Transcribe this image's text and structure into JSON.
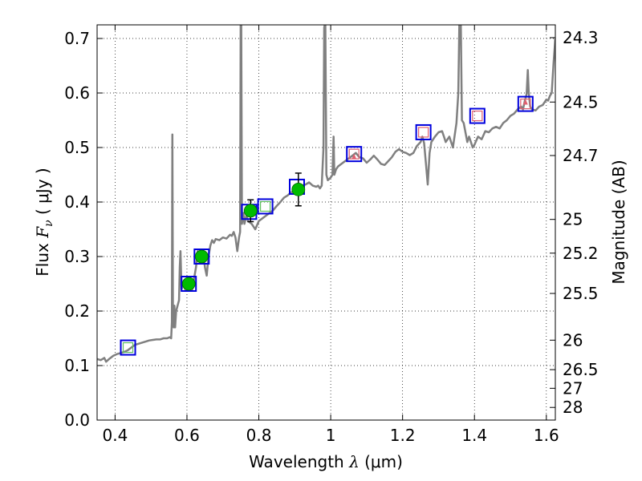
{
  "chart_data": {
    "type": "line",
    "title": "",
    "xlabel": {
      "prefix": "Wavelength  ",
      "symbol": "λ",
      "suffix": " (μm)"
    },
    "ylabel": {
      "prefix": "Flux  ",
      "symbol": "F",
      "subscript": "ν",
      "suffix": "  ( μJy )"
    },
    "y2label": "Magnitude (AB)",
    "xlim": [
      0.35,
      1.625
    ],
    "ylim": [
      0.0,
      0.725
    ],
    "x_ticks": [
      0.4,
      0.6,
      0.8,
      1.0,
      1.2,
      1.4,
      1.6
    ],
    "x_tick_labels": [
      "0.4",
      "0.6",
      "0.8",
      "1",
      "1.2",
      "1.4",
      "1.6"
    ],
    "y_ticks": [
      0.0,
      0.1,
      0.2,
      0.3,
      0.4,
      0.5,
      0.6,
      0.7
    ],
    "y_tick_labels": [
      "0.0",
      "0.1",
      "0.2",
      "0.3",
      "0.4",
      "0.5",
      "0.6",
      "0.7"
    ],
    "mag_ticks": [
      {
        "label": "24.3",
        "flux": 0.7015
      },
      {
        "label": "24.5",
        "flux": 0.5834
      },
      {
        "label": "24.7",
        "flux": 0.4853
      },
      {
        "label": "25",
        "flux": 0.3681
      },
      {
        "label": "25.2",
        "flux": 0.3062
      },
      {
        "label": "25.5",
        "flux": 0.2323
      },
      {
        "label": "26",
        "flux": 0.1466
      },
      {
        "label": "26.5",
        "flux": 0.0925
      },
      {
        "label": "27",
        "flux": 0.0583
      },
      {
        "label": "28",
        "flux": 0.0232
      }
    ],
    "grid": true,
    "colors": {
      "model": "#808080",
      "observed": "#00bb00",
      "model_box": "#0000dd",
      "upper_inner": "#e06070",
      "green_inner": "#60c060",
      "errorbar": "#000000"
    },
    "series": [
      {
        "kind": "model_spectrum",
        "points": [
          [
            0.35,
            0.112
          ],
          [
            0.36,
            0.11
          ],
          [
            0.37,
            0.114
          ],
          [
            0.375,
            0.107
          ],
          [
            0.385,
            0.113
          ],
          [
            0.395,
            0.118
          ],
          [
            0.405,
            0.121
          ],
          [
            0.415,
            0.123
          ],
          [
            0.425,
            0.125
          ],
          [
            0.435,
            0.128
          ],
          [
            0.445,
            0.133
          ],
          [
            0.455,
            0.138
          ],
          [
            0.465,
            0.14
          ],
          [
            0.475,
            0.142
          ],
          [
            0.485,
            0.144
          ],
          [
            0.495,
            0.146
          ],
          [
            0.505,
            0.147
          ],
          [
            0.515,
            0.148
          ],
          [
            0.525,
            0.148
          ],
          [
            0.535,
            0.15
          ],
          [
            0.545,
            0.15
          ],
          [
            0.552,
            0.152
          ],
          [
            0.556,
            0.15
          ],
          [
            0.558,
            0.18
          ],
          [
            0.5595,
            0.524
          ],
          [
            0.561,
            0.19
          ],
          [
            0.563,
            0.17
          ],
          [
            0.565,
            0.21
          ],
          [
            0.567,
            0.17
          ],
          [
            0.57,
            0.2
          ],
          [
            0.574,
            0.21
          ],
          [
            0.578,
            0.22
          ],
          [
            0.58,
            0.28
          ],
          [
            0.582,
            0.31
          ],
          [
            0.585,
            0.24
          ],
          [
            0.59,
            0.25
          ],
          [
            0.595,
            0.24
          ],
          [
            0.6,
            0.245
          ],
          [
            0.605,
            0.26
          ],
          [
            0.61,
            0.255
          ],
          [
            0.615,
            0.24
          ],
          [
            0.62,
            0.26
          ],
          [
            0.625,
            0.28
          ],
          [
            0.63,
            0.31
          ],
          [
            0.635,
            0.3
          ],
          [
            0.64,
            0.295
          ],
          [
            0.645,
            0.31
          ],
          [
            0.65,
            0.28
          ],
          [
            0.655,
            0.265
          ],
          [
            0.66,
            0.3
          ],
          [
            0.665,
            0.32
          ],
          [
            0.67,
            0.33
          ],
          [
            0.675,
            0.325
          ],
          [
            0.68,
            0.332
          ],
          [
            0.69,
            0.33
          ],
          [
            0.7,
            0.335
          ],
          [
            0.71,
            0.333
          ],
          [
            0.72,
            0.34
          ],
          [
            0.725,
            0.338
          ],
          [
            0.73,
            0.345
          ],
          [
            0.735,
            0.335
          ],
          [
            0.74,
            0.31
          ],
          [
            0.745,
            0.335
          ],
          [
            0.748,
            0.345
          ],
          [
            0.7495,
            0.73
          ],
          [
            0.751,
            0.73
          ],
          [
            0.753,
            0.36
          ],
          [
            0.757,
            0.38
          ],
          [
            0.76,
            0.36
          ],
          [
            0.765,
            0.375
          ],
          [
            0.77,
            0.365
          ],
          [
            0.78,
            0.36
          ],
          [
            0.79,
            0.35
          ],
          [
            0.8,
            0.365
          ],
          [
            0.81,
            0.37
          ],
          [
            0.82,
            0.375
          ],
          [
            0.83,
            0.38
          ],
          [
            0.84,
            0.385
          ],
          [
            0.85,
            0.393
          ],
          [
            0.86,
            0.4
          ],
          [
            0.87,
            0.408
          ],
          [
            0.88,
            0.412
          ],
          [
            0.89,
            0.418
          ],
          [
            0.9,
            0.42
          ],
          [
            0.91,
            0.425
          ],
          [
            0.92,
            0.43
          ],
          [
            0.93,
            0.432
          ],
          [
            0.94,
            0.436
          ],
          [
            0.95,
            0.43
          ],
          [
            0.96,
            0.428
          ],
          [
            0.965,
            0.43
          ],
          [
            0.97,
            0.425
          ],
          [
            0.975,
            0.43
          ],
          [
            0.98,
            0.5
          ],
          [
            0.982,
            0.72
          ],
          [
            0.985,
            0.73
          ],
          [
            0.988,
            0.45
          ],
          [
            0.992,
            0.44
          ],
          [
            1.0,
            0.445
          ],
          [
            1.005,
            0.45
          ],
          [
            1.008,
            0.52
          ],
          [
            1.01,
            0.45
          ],
          [
            1.015,
            0.46
          ],
          [
            1.02,
            0.465
          ],
          [
            1.03,
            0.47
          ],
          [
            1.04,
            0.475
          ],
          [
            1.05,
            0.48
          ],
          [
            1.06,
            0.485
          ],
          [
            1.07,
            0.49
          ],
          [
            1.08,
            0.482
          ],
          [
            1.09,
            0.48
          ],
          [
            1.1,
            0.472
          ],
          [
            1.11,
            0.478
          ],
          [
            1.12,
            0.485
          ],
          [
            1.13,
            0.478
          ],
          [
            1.14,
            0.47
          ],
          [
            1.15,
            0.468
          ],
          [
            1.16,
            0.475
          ],
          [
            1.17,
            0.482
          ],
          [
            1.18,
            0.492
          ],
          [
            1.19,
            0.497
          ],
          [
            1.2,
            0.492
          ],
          [
            1.21,
            0.49
          ],
          [
            1.22,
            0.486
          ],
          [
            1.23,
            0.49
          ],
          [
            1.24,
            0.503
          ],
          [
            1.25,
            0.51
          ],
          [
            1.255,
            0.52
          ],
          [
            1.26,
            0.508
          ],
          [
            1.265,
            0.47
          ],
          [
            1.27,
            0.432
          ],
          [
            1.275,
            0.49
          ],
          [
            1.28,
            0.51
          ],
          [
            1.29,
            0.52
          ],
          [
            1.3,
            0.528
          ],
          [
            1.31,
            0.53
          ],
          [
            1.315,
            0.52
          ],
          [
            1.32,
            0.51
          ],
          [
            1.33,
            0.52
          ],
          [
            1.34,
            0.5
          ],
          [
            1.35,
            0.545
          ],
          [
            1.355,
            0.6
          ],
          [
            1.358,
            0.73
          ],
          [
            1.362,
            0.73
          ],
          [
            1.365,
            0.55
          ],
          [
            1.37,
            0.545
          ],
          [
            1.38,
            0.51
          ],
          [
            1.385,
            0.52
          ],
          [
            1.39,
            0.51
          ],
          [
            1.395,
            0.5
          ],
          [
            1.4,
            0.505
          ],
          [
            1.41,
            0.52
          ],
          [
            1.42,
            0.515
          ],
          [
            1.43,
            0.53
          ],
          [
            1.44,
            0.528
          ],
          [
            1.45,
            0.535
          ],
          [
            1.46,
            0.538
          ],
          [
            1.47,
            0.535
          ],
          [
            1.48,
            0.545
          ],
          [
            1.49,
            0.55
          ],
          [
            1.5,
            0.558
          ],
          [
            1.51,
            0.562
          ],
          [
            1.52,
            0.57
          ],
          [
            1.53,
            0.575
          ],
          [
            1.535,
            0.57
          ],
          [
            1.54,
            0.585
          ],
          [
            1.545,
            0.598
          ],
          [
            1.5485,
            0.642
          ],
          [
            1.551,
            0.6
          ],
          [
            1.555,
            0.575
          ],
          [
            1.56,
            0.57
          ],
          [
            1.57,
            0.568
          ],
          [
            1.58,
            0.575
          ],
          [
            1.59,
            0.578
          ],
          [
            1.6,
            0.588
          ],
          [
            1.605,
            0.586
          ],
          [
            1.61,
            0.595
          ],
          [
            1.615,
            0.6
          ],
          [
            1.62,
            0.655
          ],
          [
            1.625,
            0.7
          ]
        ]
      },
      {
        "kind": "model_photometry_boxes",
        "points": [
          {
            "x": 0.436,
            "y": 0.133,
            "inner": "green"
          },
          {
            "x": 0.605,
            "y": 0.25,
            "inner": "none"
          },
          {
            "x": 0.641,
            "y": 0.3,
            "inner": "none"
          },
          {
            "x": 0.773,
            "y": 0.382,
            "inner": "none"
          },
          {
            "x": 0.818,
            "y": 0.392,
            "inner": "green"
          },
          {
            "x": 0.906,
            "y": 0.428,
            "inner": "none"
          },
          {
            "x": 1.065,
            "y": 0.488,
            "inner": "red"
          },
          {
            "x": 1.258,
            "y": 0.528,
            "inner": "red"
          },
          {
            "x": 1.408,
            "y": 0.558,
            "inner": "red"
          },
          {
            "x": 1.542,
            "y": 0.58,
            "inner": "red"
          }
        ]
      },
      {
        "kind": "observed",
        "points": [
          {
            "x": 0.605,
            "y": 0.25,
            "err": 0.0
          },
          {
            "x": 0.641,
            "y": 0.3,
            "err": 0.0
          },
          {
            "x": 0.777,
            "y": 0.384,
            "err": 0.02
          },
          {
            "x": 0.91,
            "y": 0.423,
            "err": 0.03
          }
        ]
      },
      {
        "kind": "upper_limit_markers",
        "points": [
          {
            "x": 1.065,
            "y": 0.483
          },
          {
            "x": 1.542,
            "y": 0.583
          }
        ]
      }
    ]
  }
}
